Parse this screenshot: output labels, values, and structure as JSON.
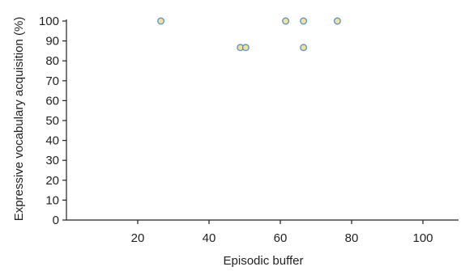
{
  "chart_data": {
    "type": "scatter",
    "title": "",
    "xlabel": "Episodic buffer",
    "ylabel": "Expressive vocabulary acquisition (%)",
    "xlim": [
      0,
      110
    ],
    "ylim": [
      0,
      100
    ],
    "x_ticks": [
      20,
      40,
      60,
      80,
      100
    ],
    "x_tick_labels": [
      "20",
      "40",
      "60",
      "80",
      "100"
    ],
    "y_ticks": [
      0,
      10,
      20,
      30,
      40,
      50,
      60,
      70,
      80,
      90,
      100
    ],
    "y_tick_labels": [
      "0",
      "10",
      "20",
      "30",
      "40",
      "50",
      "60",
      "70",
      "80",
      "90",
      "100"
    ],
    "grid": false,
    "legend": "none",
    "series": [
      {
        "points": [
          {
            "x": 26.5,
            "y": 100
          },
          {
            "x": 61.5,
            "y": 100
          },
          {
            "x": 66.5,
            "y": 100
          },
          {
            "x": 76,
            "y": 100
          },
          {
            "x": 48.8,
            "y": 86.7
          },
          {
            "x": 50.3,
            "y": 86.7
          },
          {
            "x": 66.5,
            "y": 86.7
          }
        ]
      }
    ],
    "marker_fill": "#ece3a3",
    "marker_stroke": "#5a8fc7",
    "axis_color": "#222222"
  }
}
